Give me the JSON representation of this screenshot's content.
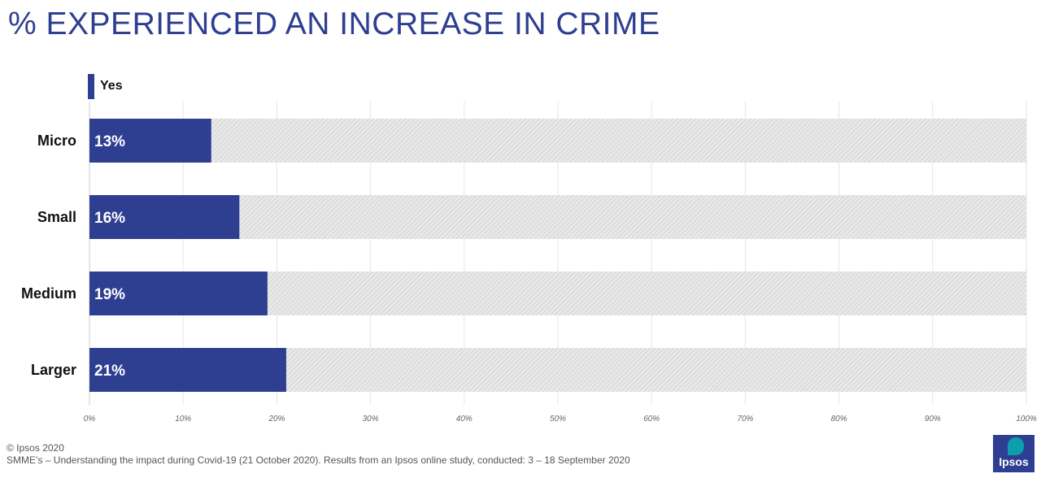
{
  "title": "% EXPERIENCED AN INCREASE IN CRIME",
  "legend": {
    "label": "Yes",
    "color": "#2e3e91"
  },
  "chart_data": {
    "type": "bar",
    "orientation": "horizontal",
    "stacked": true,
    "categories": [
      "Micro",
      "Small",
      "Medium",
      "Larger"
    ],
    "series": [
      {
        "name": "Yes",
        "values": [
          13,
          16,
          19,
          21
        ],
        "color": "#2e3e91"
      }
    ],
    "data_labels": [
      "13%",
      "16%",
      "19%",
      "21%"
    ],
    "xlim": [
      0,
      100
    ],
    "x_ticks": [
      "0%",
      "10%",
      "20%",
      "30%",
      "40%",
      "50%",
      "60%",
      "70%",
      "80%",
      "90%",
      "100%"
    ],
    "grid": true,
    "legend_position": "top-left",
    "remainder_fill": "hatched-gray"
  },
  "footer": {
    "copyright": "© Ipsos 2020",
    "source": "SMME’s – Understanding the impact during Covid-19 (21 October 2020). Results from an Ipsos online study, conducted: 3 – 18 September 2020"
  },
  "logo": {
    "text": "Ipsos",
    "colors": {
      "background": "#2e3e91",
      "accent": "#0c9eab"
    }
  }
}
